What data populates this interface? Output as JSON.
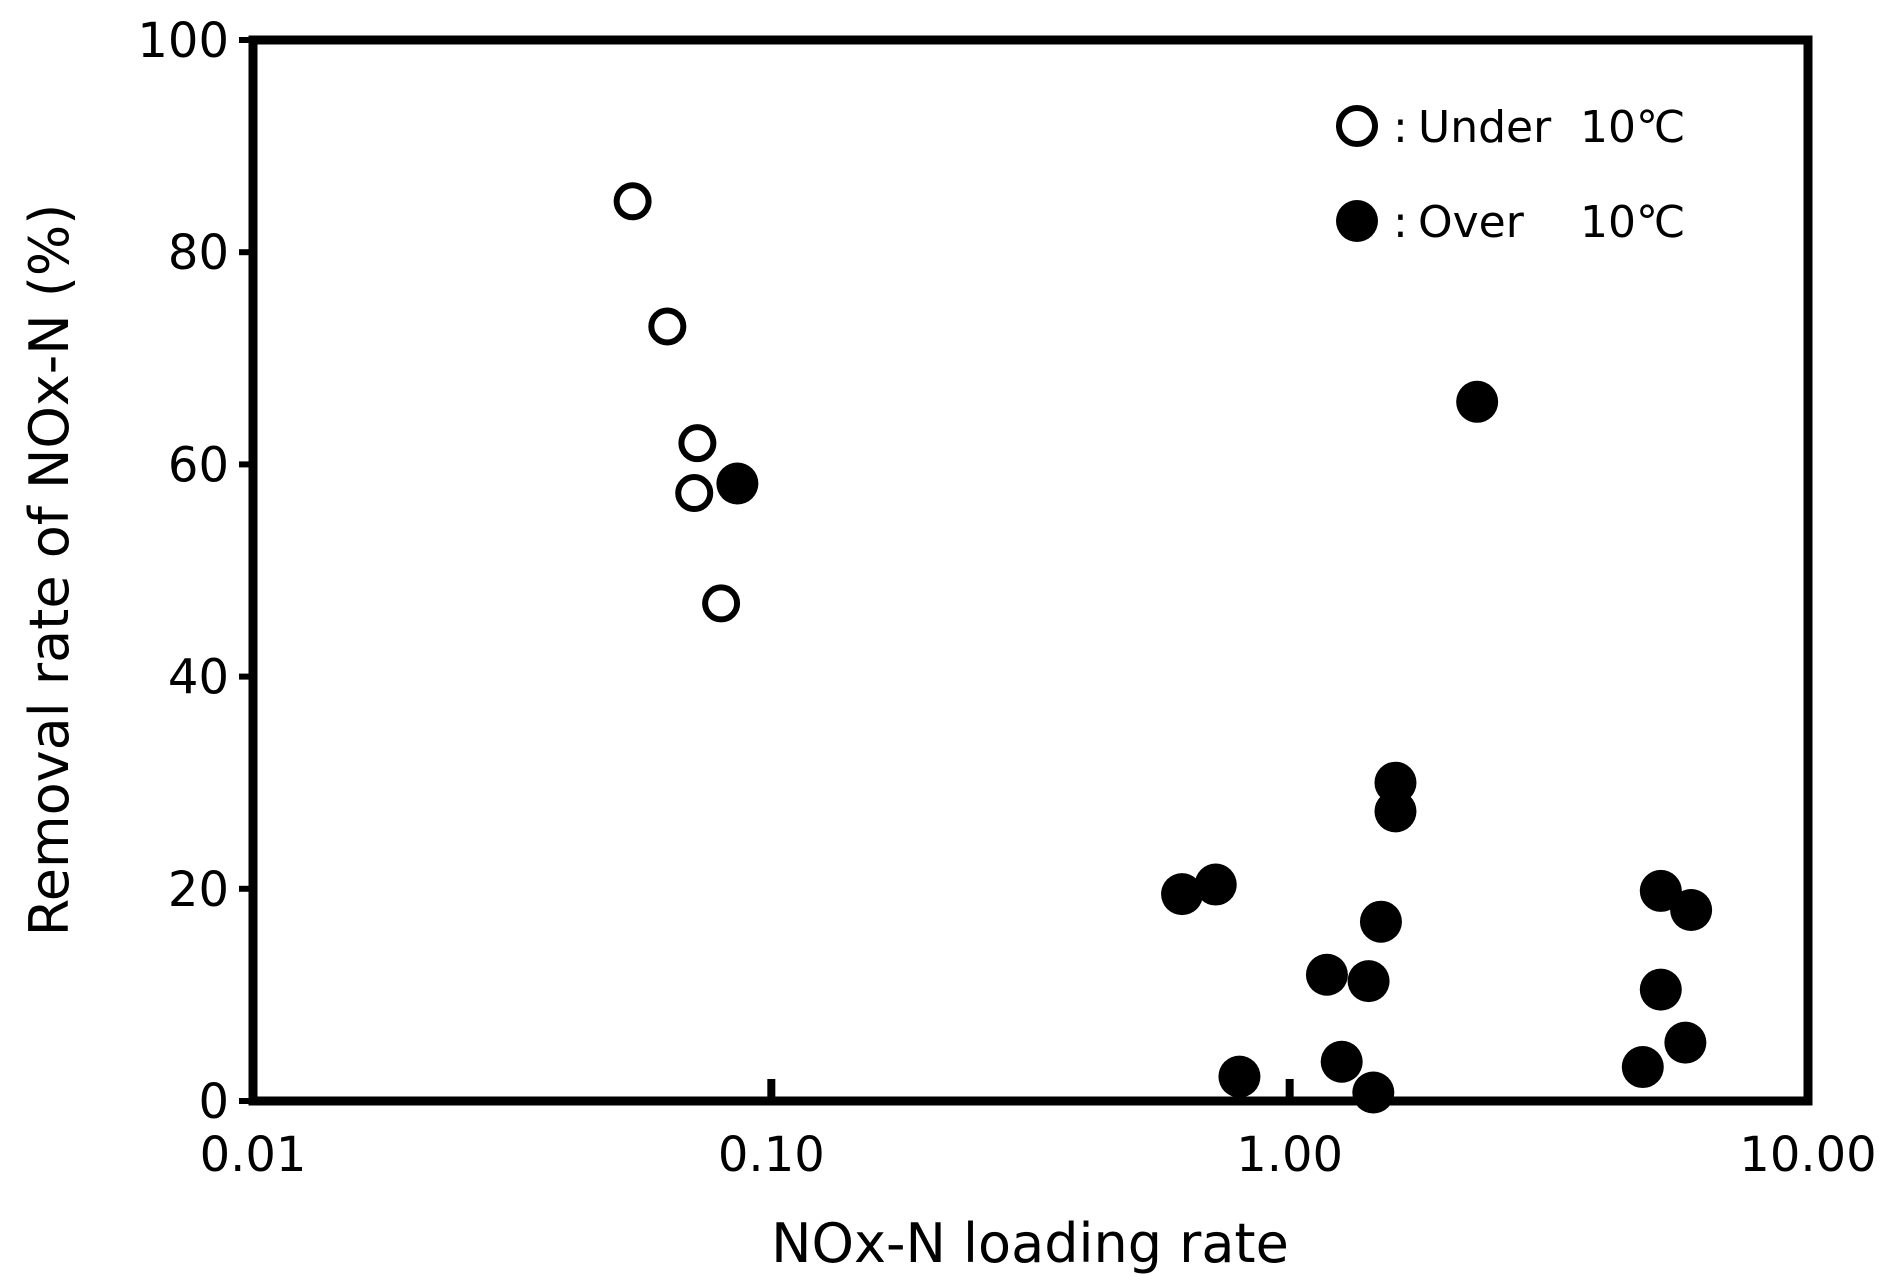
{
  "chart_data": {
    "type": "scatter",
    "xlabel": "NOx-N loading rate",
    "ylabel": "Removal rate of NOx-N (%)",
    "x_scale": "log",
    "xlim": [
      0.01,
      10.0
    ],
    "ylim": [
      0,
      100
    ],
    "x_ticks": [
      {
        "value": 0.01,
        "label": "0.01"
      },
      {
        "value": 0.1,
        "label": "0.10"
      },
      {
        "value": 1.0,
        "label": "1.00"
      },
      {
        "value": 10.0,
        "label": "10.00"
      }
    ],
    "y_ticks": [
      {
        "value": 0,
        "label": "0"
      },
      {
        "value": 20,
        "label": "20"
      },
      {
        "value": 40,
        "label": "40"
      },
      {
        "value": 60,
        "label": "60"
      },
      {
        "value": 80,
        "label": "80"
      },
      {
        "value": 100,
        "label": "100"
      }
    ],
    "grid": false,
    "legend_position": "top-right",
    "series": [
      {
        "name": "Under",
        "legend_prefix": ":",
        "legend_temp": "10℃",
        "marker": "open-circle",
        "color": "#000000",
        "points": [
          {
            "x": 0.054,
            "y": 84.8
          },
          {
            "x": 0.063,
            "y": 73.0
          },
          {
            "x": 0.072,
            "y": 62.0
          },
          {
            "x": 0.071,
            "y": 57.3
          },
          {
            "x": 0.08,
            "y": 46.9
          }
        ]
      },
      {
        "name": "Over",
        "legend_prefix": ":",
        "legend_temp": "10℃",
        "marker": "filled-circle",
        "color": "#000000",
        "points": [
          {
            "x": 0.086,
            "y": 58.2
          },
          {
            "x": 0.62,
            "y": 19.5
          },
          {
            "x": 0.72,
            "y": 20.4
          },
          {
            "x": 0.8,
            "y": 2.3
          },
          {
            "x": 1.18,
            "y": 11.9
          },
          {
            "x": 1.26,
            "y": 3.7
          },
          {
            "x": 1.42,
            "y": 11.3
          },
          {
            "x": 1.45,
            "y": 0.8
          },
          {
            "x": 1.5,
            "y": 16.9
          },
          {
            "x": 1.6,
            "y": 30.0
          },
          {
            "x": 1.6,
            "y": 27.3
          },
          {
            "x": 2.3,
            "y": 65.9
          },
          {
            "x": 4.8,
            "y": 3.2
          },
          {
            "x": 5.2,
            "y": 19.8
          },
          {
            "x": 5.2,
            "y": 10.5
          },
          {
            "x": 5.8,
            "y": 5.5
          },
          {
            "x": 5.95,
            "y": 18.0
          }
        ]
      }
    ]
  }
}
